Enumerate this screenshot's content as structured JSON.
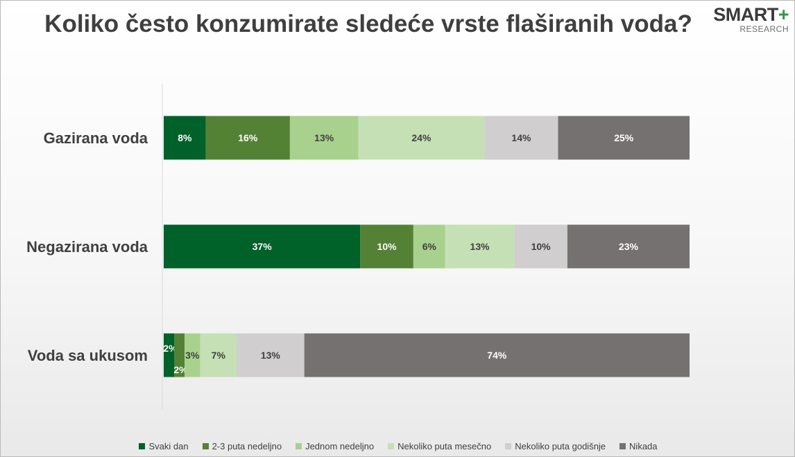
{
  "title": "Koliko često konzumirate sledeće vrste flaširanih voda?",
  "logo": {
    "main": "SMART",
    "plus": "+",
    "sub": "RESEARCH"
  },
  "chart_data": {
    "type": "bar",
    "orientation": "horizontal",
    "stacked": "percent",
    "categories": [
      "Gazirana voda",
      "Negazirana voda",
      "Voda sa ukusom"
    ],
    "series": [
      {
        "name": "Svaki dan",
        "color": "#006228",
        "label_color": "#ffffff",
        "values": [
          8,
          37,
          2
        ]
      },
      {
        "name": "2-3 puta nedeljno",
        "color": "#538234",
        "label_color": "#ffffff",
        "values": [
          16,
          10,
          2
        ]
      },
      {
        "name": "Jednom nedeljno",
        "color": "#a9d18e",
        "label_color": "#404040",
        "values": [
          13,
          6,
          3
        ]
      },
      {
        "name": "Nekoliko puta mesečno",
        "color": "#c5e0b4",
        "label_color": "#404040",
        "values": [
          24,
          13,
          7
        ]
      },
      {
        "name": "Nekoliko puta godišnje",
        "color": "#d0cece",
        "label_color": "#404040",
        "values": [
          14,
          10,
          13
        ]
      },
      {
        "name": "Nikada",
        "color": "#767171",
        "label_color": "#ffffff",
        "values": [
          25,
          23,
          74
        ]
      }
    ],
    "value_suffix": "%",
    "legend_position": "bottom",
    "grid": false
  }
}
